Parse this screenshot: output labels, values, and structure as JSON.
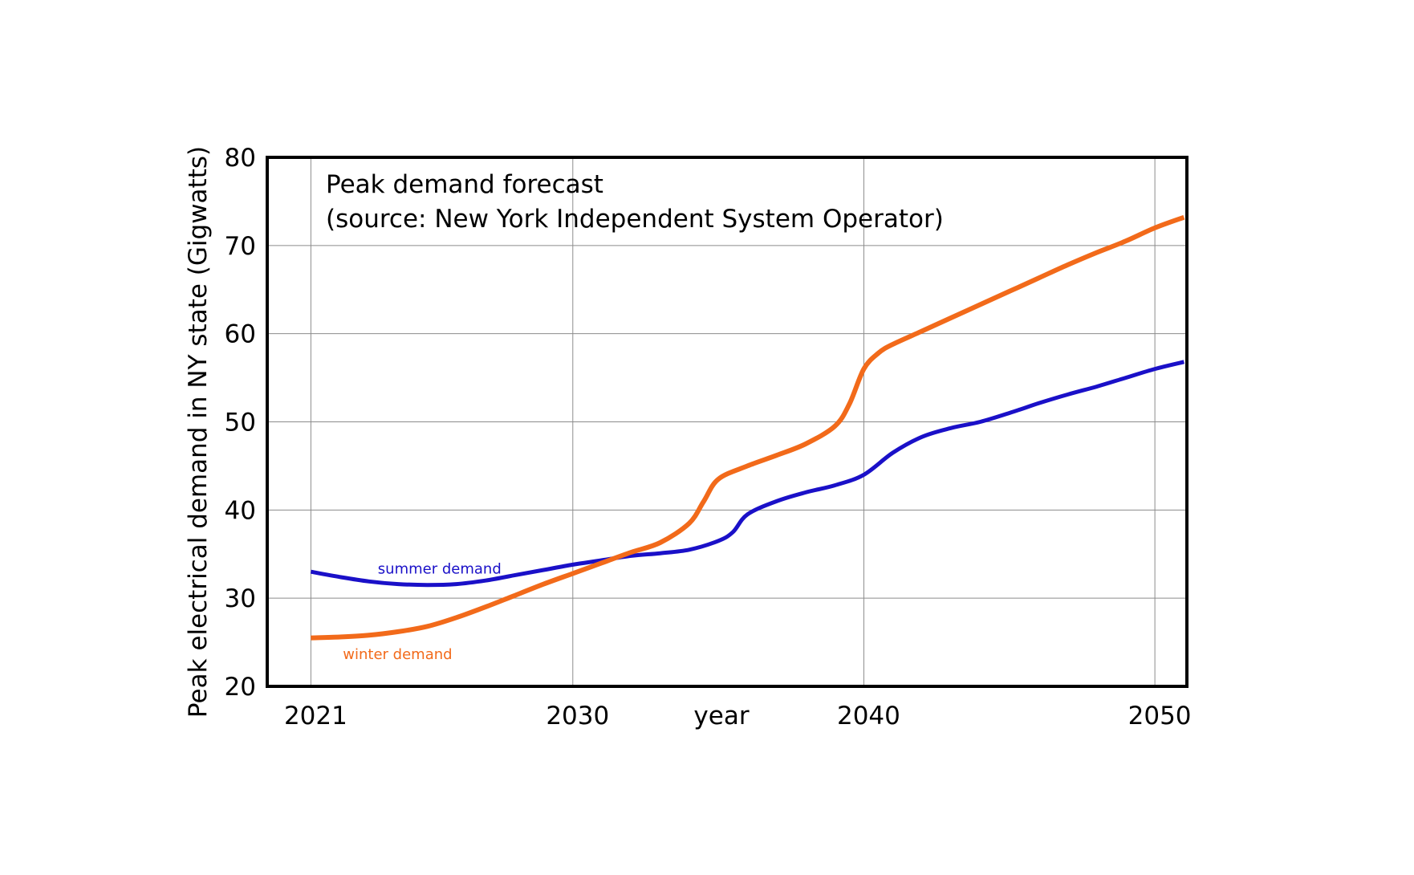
{
  "chart_data": {
    "type": "line",
    "title": "Peak demand forecast",
    "subtitle": "(source: New York Independent System Operator)",
    "xlabel": "year",
    "ylabel": "Peak electrical demand in NY state (Gigwatts)",
    "xlim": [
      2019.5,
      2051.1
    ],
    "ylim": [
      20,
      80
    ],
    "x_ticks": [
      2021,
      2030,
      2040,
      2050
    ],
    "x_tick_labels": [
      "2021",
      "2030",
      "2040",
      "2050"
    ],
    "y_ticks": [
      20,
      30,
      40,
      50,
      60,
      70,
      80
    ],
    "y_tick_labels": [
      "20",
      "30",
      "40",
      "50",
      "60",
      "70",
      "80"
    ],
    "grid": true,
    "series": [
      {
        "name": "summer demand",
        "color": "#1a10c8",
        "label_at": [
          2023.3,
          32.8
        ],
        "x": [
          2021,
          2022,
          2023,
          2024,
          2025,
          2026,
          2027,
          2028,
          2029,
          2030,
          2031,
          2032,
          2033,
          2034,
          2035,
          2035.5,
          2036,
          2037,
          2038,
          2039,
          2040,
          2041,
          2042,
          2043,
          2044,
          2045,
          2046,
          2047,
          2048,
          2049,
          2050,
          2051
        ],
        "values": [
          33.0,
          32.4,
          31.9,
          31.6,
          31.5,
          31.6,
          32.0,
          32.6,
          33.2,
          33.8,
          34.3,
          34.8,
          35.1,
          35.5,
          36.5,
          37.5,
          39.5,
          41.0,
          42.0,
          42.8,
          44.0,
          46.5,
          48.3,
          49.3,
          50.0,
          51.0,
          52.1,
          53.1,
          54.0,
          55.0,
          56.0,
          56.8
        ]
      },
      {
        "name": "winter demand",
        "color": "#f26a1a",
        "label_at": [
          2022.1,
          23.1
        ],
        "x": [
          2021,
          2022,
          2023,
          2024,
          2025,
          2026,
          2027,
          2028,
          2029,
          2030,
          2031,
          2032,
          2033,
          2034,
          2034.5,
          2035,
          2036,
          2037,
          2038,
          2039,
          2039.5,
          2040,
          2040.5,
          2041,
          2042,
          2043,
          2044,
          2045,
          2046,
          2047,
          2048,
          2049,
          2050,
          2051
        ],
        "values": [
          25.5,
          25.6,
          25.8,
          26.2,
          26.8,
          27.8,
          29.0,
          30.3,
          31.6,
          32.8,
          34.0,
          35.2,
          36.3,
          38.5,
          41.0,
          43.5,
          45.0,
          46.2,
          47.5,
          49.5,
          52.0,
          56.0,
          57.8,
          58.8,
          60.3,
          61.8,
          63.3,
          64.8,
          66.3,
          67.8,
          69.2,
          70.5,
          72.0,
          73.2
        ]
      }
    ]
  }
}
